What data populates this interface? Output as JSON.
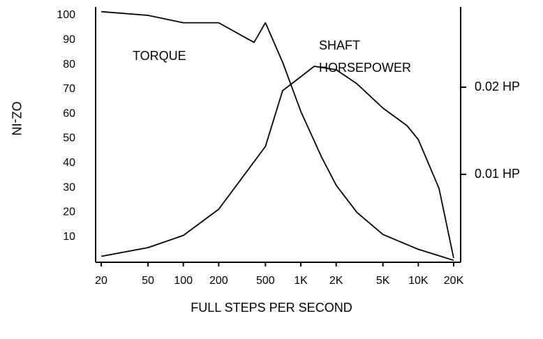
{
  "chart_data": {
    "type": "line",
    "annotations": [
      "TORQUE",
      "SHAFT",
      "HORSEPOWER"
    ],
    "xlabel": "FULL STEPS PER SECOND",
    "ylabel": "OZ-IN",
    "xscale": "log",
    "xlim": [
      20,
      20000
    ],
    "xticks": [
      20,
      50,
      100,
      200,
      500,
      {
        "value": 1000,
        "label": "1K"
      },
      {
        "value": 2000,
        "label": "2K"
      },
      {
        "value": 5000,
        "label": "5K"
      },
      {
        "value": 10000,
        "label": "10K"
      },
      {
        "value": 20000,
        "label": "20K"
      }
    ],
    "ylim": [
      0,
      103.4
    ],
    "yticks": [
      10,
      20,
      30,
      40,
      50,
      60,
      70,
      80,
      90,
      100
    ],
    "y2lim": [
      0,
      0.0292
    ],
    "y2ticks": [
      {
        "value": 0.01,
        "label": "0.01 HP"
      },
      {
        "value": 0.02,
        "label": "0.02 HP"
      }
    ],
    "grid": false,
    "series": [
      {
        "color": "#000000",
        "x": [
          20,
          50,
          100,
          200,
          400,
          500,
          700,
          1000,
          1500,
          2000,
          3000,
          5000,
          10000,
          20000
        ],
        "values": [
          101.5,
          100,
          97,
          97,
          89,
          97,
          81,
          61,
          42.5,
          31,
          20,
          11,
          5,
          0.5
        ]
      },
      {
        "color": "#000000",
        "axis": "y2",
        "x": [
          20,
          50,
          100,
          200,
          500,
          700,
          1000,
          1300,
          2000,
          3000,
          5000,
          8000,
          10000,
          15000,
          20000
        ],
        "values": [
          0.0006,
          0.0016,
          0.003,
          0.006,
          0.0132,
          0.0196,
          0.0212,
          0.0224,
          0.022,
          0.0204,
          0.0176,
          0.0156,
          0.014,
          0.0084,
          0.0004
        ]
      }
    ]
  }
}
